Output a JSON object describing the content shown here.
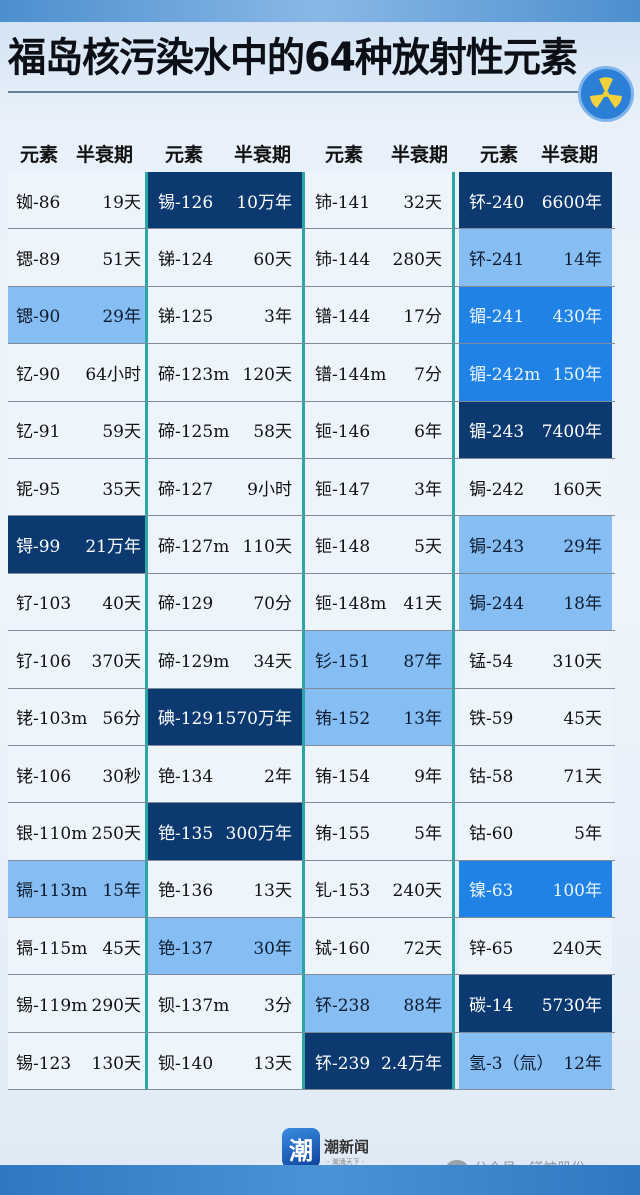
{
  "title": "福岛核污染水中的64种放射性元素",
  "header": {
    "element": "元素",
    "halflife": "半衰期"
  },
  "colors": {
    "dark": "#0c3a70",
    "mid": "#1f82e4",
    "light": "#86bdf2",
    "divider": "#2aa6a6"
  },
  "icons": {
    "badge": "radiation-icon"
  },
  "columns": [
    [
      [
        "铷-86",
        "19天",
        ""
      ],
      [
        "锶-89",
        "51天",
        ""
      ],
      [
        "锶-90",
        "29年",
        "light"
      ],
      [
        "钇-90",
        "64小时",
        ""
      ],
      [
        "钇-91",
        "59天",
        ""
      ],
      [
        "铌-95",
        "35天",
        ""
      ],
      [
        "锝-99",
        "21万年",
        "dark"
      ],
      [
        "钌-103",
        "40天",
        ""
      ],
      [
        "钌-106",
        "370天",
        ""
      ],
      [
        "铑-103m",
        "56分",
        ""
      ],
      [
        "铑-106",
        "30秒",
        ""
      ],
      [
        "银-110m",
        "250天",
        ""
      ],
      [
        "镉-113m",
        "15年",
        "light"
      ],
      [
        "镉-115m",
        "45天",
        ""
      ],
      [
        "锡-119m",
        "290天",
        ""
      ],
      [
        "锡-123",
        "130天",
        ""
      ]
    ],
    [
      [
        "锡-126",
        "10万年",
        "dark"
      ],
      [
        "锑-124",
        "60天",
        ""
      ],
      [
        "锑-125",
        "3年",
        ""
      ],
      [
        "碲-123m",
        "120天",
        ""
      ],
      [
        "碲-125m",
        "58天",
        ""
      ],
      [
        "碲-127",
        "9小时",
        ""
      ],
      [
        "碲-127m",
        "110天",
        ""
      ],
      [
        "碲-129",
        "70分",
        ""
      ],
      [
        "碲-129m",
        "34天",
        ""
      ],
      [
        "碘-129",
        "1570万年",
        "dark"
      ],
      [
        "铯-134",
        "2年",
        ""
      ],
      [
        "铯-135",
        "300万年",
        "dark"
      ],
      [
        "铯-136",
        "13天",
        ""
      ],
      [
        "铯-137",
        "30年",
        "light"
      ],
      [
        "钡-137m",
        "3分",
        ""
      ],
      [
        "钡-140",
        "13天",
        ""
      ]
    ],
    [
      [
        "铈-141",
        "32天",
        ""
      ],
      [
        "铈-144",
        "280天",
        ""
      ],
      [
        "镨-144",
        "17分",
        ""
      ],
      [
        "镨-144m",
        "7分",
        ""
      ],
      [
        "钷-146",
        "6年",
        ""
      ],
      [
        "钷-147",
        "3年",
        ""
      ],
      [
        "钷-148",
        "5天",
        ""
      ],
      [
        "钷-148m",
        "41天",
        ""
      ],
      [
        "钐-151",
        "87年",
        "light"
      ],
      [
        "铕-152",
        "13年",
        "light"
      ],
      [
        "铕-154",
        "9年",
        ""
      ],
      [
        "铕-155",
        "5年",
        ""
      ],
      [
        "钆-153",
        "240天",
        ""
      ],
      [
        "铽-160",
        "72天",
        ""
      ],
      [
        "钚-238",
        "88年",
        "light"
      ],
      [
        "钚-239",
        "2.4万年",
        "dark"
      ]
    ],
    [
      [
        "钚-240",
        "6600年",
        "dark"
      ],
      [
        "钚-241",
        "14年",
        "light"
      ],
      [
        "镅-241",
        "430年",
        "mid"
      ],
      [
        "镅-242m",
        "150年",
        "mid"
      ],
      [
        "镅-243",
        "7400年",
        "dark"
      ],
      [
        "锔-242",
        "160天",
        ""
      ],
      [
        "锔-243",
        "29年",
        "light"
      ],
      [
        "锔-244",
        "18年",
        "light"
      ],
      [
        "锰-54",
        "310天",
        ""
      ],
      [
        "铁-59",
        "45天",
        ""
      ],
      [
        "钴-58",
        "71天",
        ""
      ],
      [
        "钴-60",
        "5年",
        ""
      ],
      [
        "镍-63",
        "100年",
        "mid"
      ],
      [
        "锌-65",
        "240天",
        ""
      ],
      [
        "碳-14",
        "5730年",
        "dark"
      ],
      [
        "氢-3（氚）",
        "12年",
        "light"
      ]
    ]
  ],
  "footer": {
    "logo_char": "潮",
    "brand": "潮新闻",
    "slogan": "- 潮涌天下 -",
    "watermark": "公众号 · 镁神股份"
  }
}
